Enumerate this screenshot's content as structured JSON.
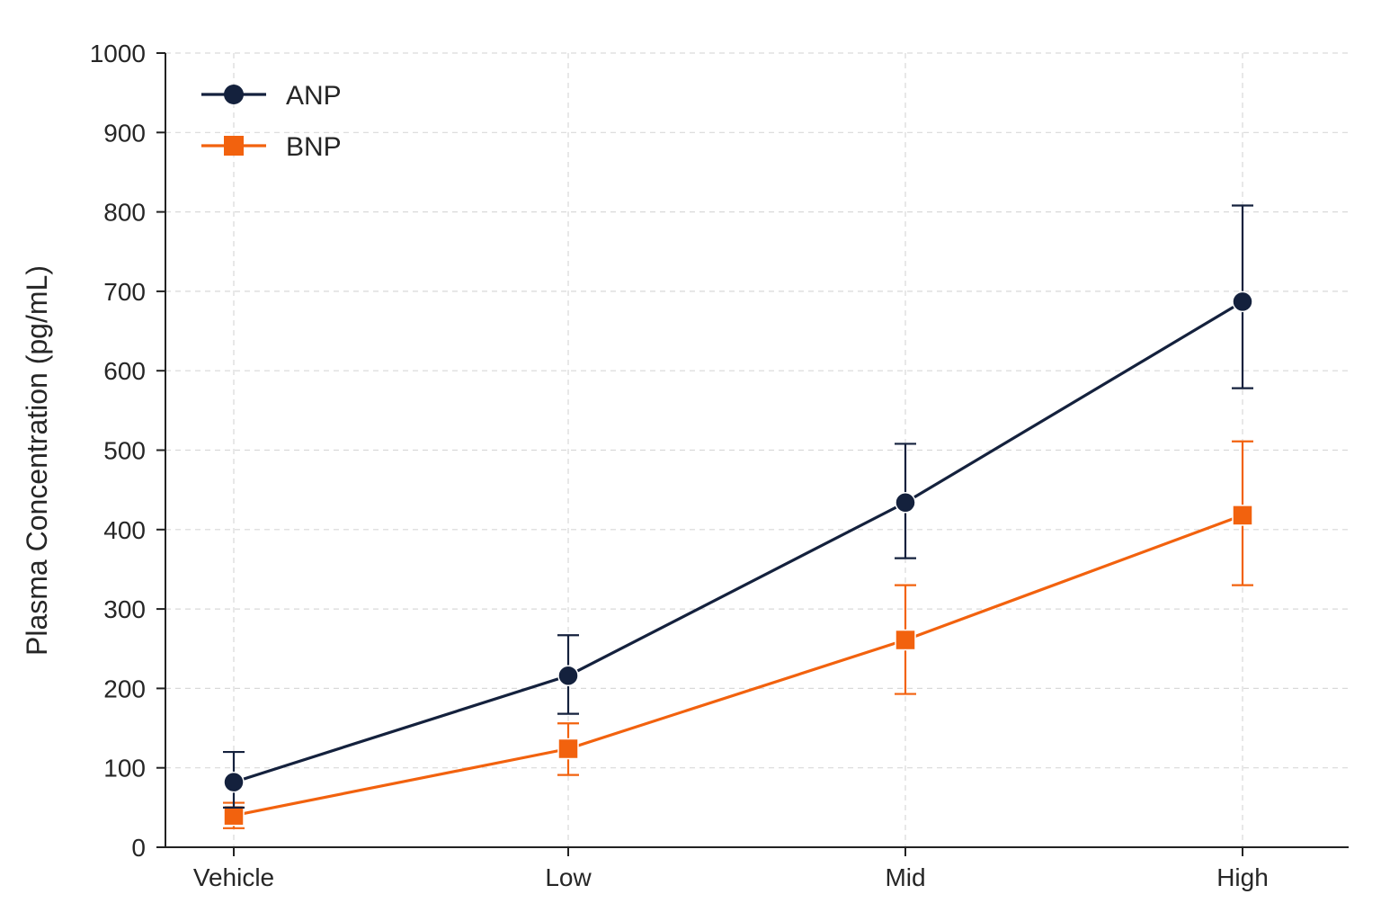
{
  "chart_data": {
    "type": "line",
    "title": "",
    "xlabel": "",
    "ylabel": "Plasma Concentration (pg/mL)",
    "categories": [
      "Vehicle",
      "Low",
      "Mid",
      "High"
    ],
    "ylim": [
      0,
      1000
    ],
    "yticks": [
      0,
      100,
      200,
      300,
      400,
      500,
      600,
      700,
      800,
      900,
      1000
    ],
    "grid": true,
    "legend_position": "top-left",
    "error_bars": true,
    "series": [
      {
        "name": "ANP",
        "color": "#14213d",
        "marker": "circle",
        "values": [
          82,
          216,
          434,
          687
        ],
        "err_low": [
          50,
          168,
          364,
          578
        ],
        "err_high": [
          120,
          267,
          508,
          808
        ]
      },
      {
        "name": "BNP",
        "color": "#f2620e",
        "marker": "square",
        "values": [
          40,
          124,
          261,
          418
        ],
        "err_low": [
          24,
          91,
          193,
          330
        ],
        "err_high": [
          56,
          156,
          330,
          511
        ]
      }
    ]
  }
}
